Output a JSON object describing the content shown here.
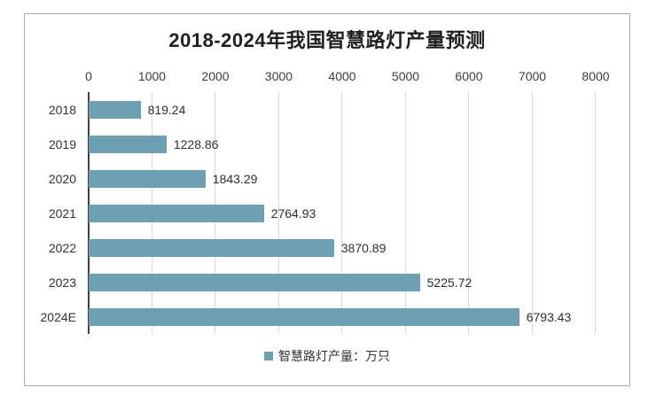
{
  "chart_data": {
    "type": "bar",
    "orientation": "horizontal",
    "title": "2018-2024年我国智慧路灯产量预测",
    "categories": [
      "2018",
      "2019",
      "2020",
      "2021",
      "2022",
      "2023",
      "2024E"
    ],
    "values": [
      819.24,
      1228.86,
      1843.29,
      2764.93,
      3870.89,
      5225.72,
      6793.43
    ],
    "value_labels": [
      "819.24",
      "1228.86",
      "1843.29",
      "2764.93",
      "3870.89",
      "5225.72",
      "6793.43"
    ],
    "x_ticks": [
      "0",
      "1000",
      "2000",
      "3000",
      "4000",
      "5000",
      "6000",
      "7000",
      "8000"
    ],
    "xlim": [
      0,
      8000
    ],
    "grid": true,
    "legend_position": "bottom",
    "legend": "智慧路灯产量：万只",
    "bar_color": "#6FA0B2",
    "gridline_color": "#d9d9d9",
    "axis_color": "#404040",
    "frame_border_color": "#a8a8a8"
  }
}
